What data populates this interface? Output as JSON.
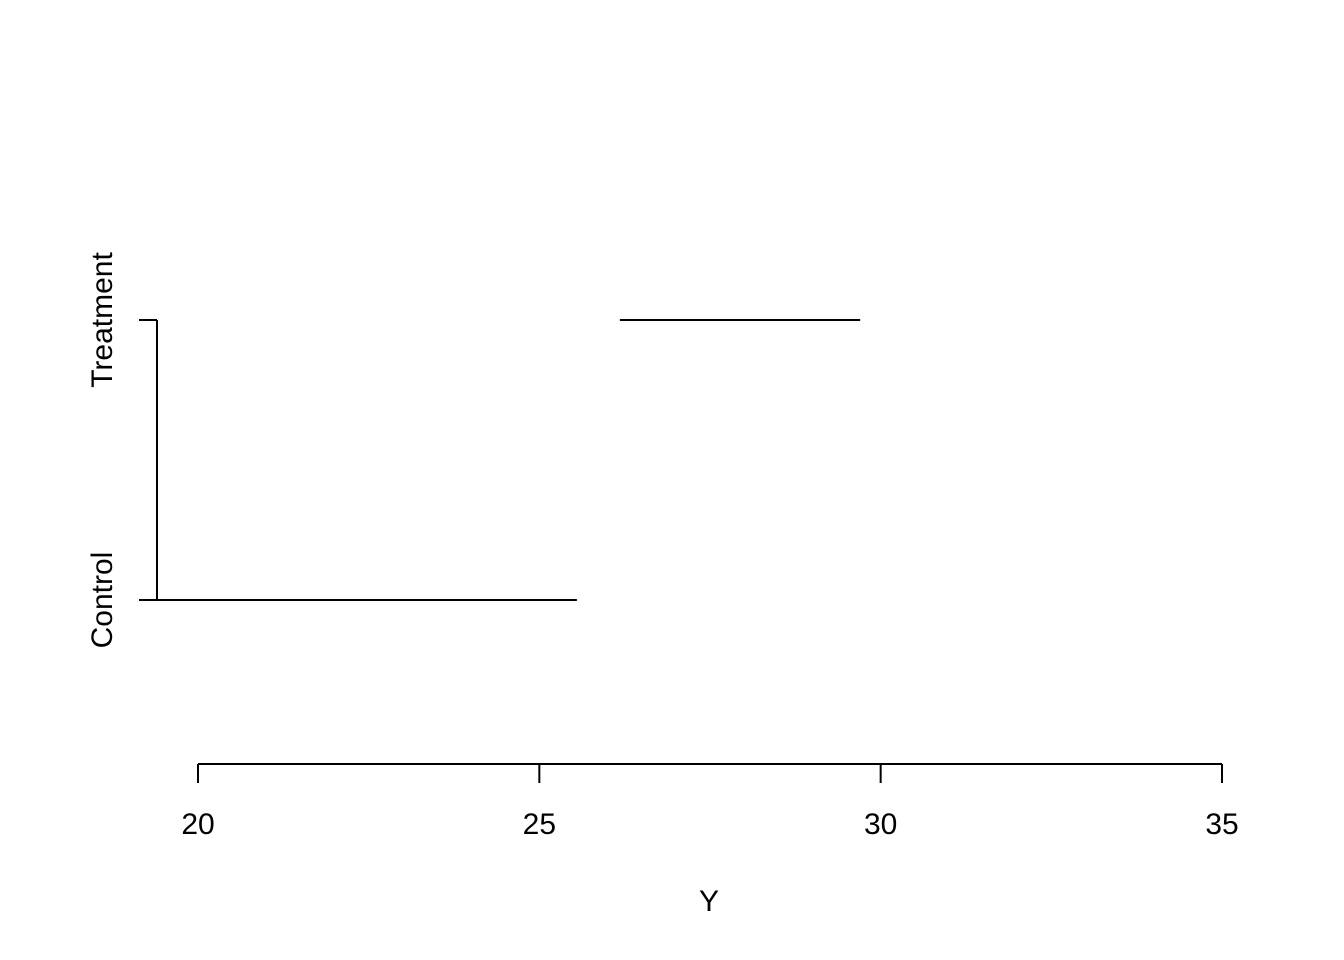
{
  "chart_data": {
    "type": "line",
    "title": "",
    "xlabel": "Y",
    "ylabel": "",
    "xlim": [
      19.1,
      35
    ],
    "x_ticks": [
      20,
      25,
      30,
      35
    ],
    "x_tick_labels": [
      "20",
      "25",
      "30",
      "35"
    ],
    "categories": [
      "Control",
      "Treatment"
    ],
    "grid": false,
    "segments": [
      {
        "category": "Control",
        "x_start": 19.14,
        "x_end": 25.55
      },
      {
        "category": "Treatment",
        "x_start": 26.18,
        "x_end": 29.7
      }
    ],
    "color": "#000000"
  }
}
